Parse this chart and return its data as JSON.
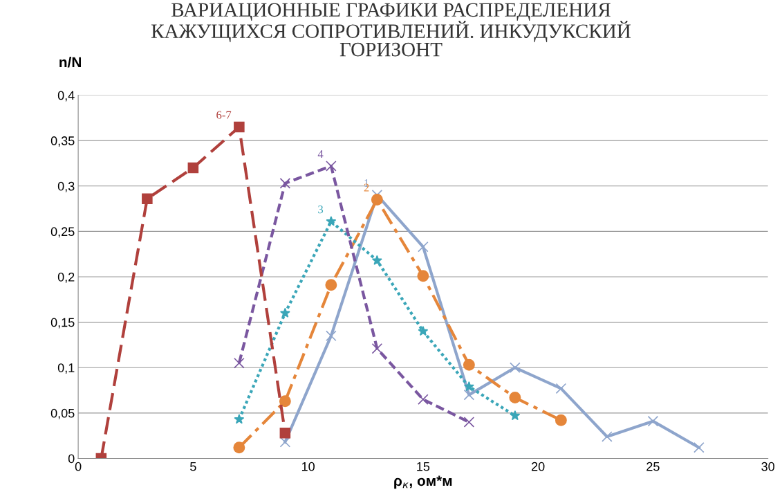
{
  "chart_data": {
    "type": "line",
    "title": "ВАРИАЦИОННЫЕ ГРАФИКИ РАСПРЕДЕЛЕНИЯ\nКАЖУЩИХСЯ СОПРОТИВЛЕНИЙ. ИНКУДУКСКИЙ\nГОРИЗОНТ",
    "xlabel": "ρ$_{к}$, ом*м",
    "ylabel": "n/N",
    "xlim": [
      0,
      30
    ],
    "xticks": [
      0,
      5,
      10,
      15,
      20,
      25,
      30
    ],
    "ylim": [
      0,
      0.4
    ],
    "yticks": [
      0,
      {
        "value": 0.05,
        "label": "0,05"
      },
      {
        "value": 0.1,
        "label": "0,1"
      },
      {
        "value": 0.15,
        "label": "0,15"
      },
      {
        "value": 0.2,
        "label": "0,2"
      },
      {
        "value": 0.25,
        "label": "0,25"
      },
      {
        "value": 0.3,
        "label": "0,3"
      },
      {
        "value": 0.35,
        "label": "0,35"
      },
      {
        "value": 0.4,
        "label": "0,4"
      }
    ],
    "grid": "y",
    "legend": false,
    "series": [
      {
        "name": "1",
        "color": "#8ea5cc",
        "marker": "cross",
        "line_style": "solid",
        "x": [
          9,
          11,
          13,
          15,
          17,
          19,
          21,
          23,
          25,
          27
        ],
        "values": [
          0.018,
          0.135,
          0.29,
          0.233,
          0.07,
          0.1,
          0.077,
          0.024,
          0.041,
          0.012
        ]
      },
      {
        "name": "2",
        "color": "#e5863a",
        "marker": "circle",
        "line_style": "dashdot",
        "x": [
          7,
          9,
          11,
          13,
          15,
          17,
          19,
          21
        ],
        "values": [
          0.012,
          0.063,
          0.191,
          0.285,
          0.201,
          0.103,
          0.067,
          0.042
        ]
      },
      {
        "name": "3",
        "color": "#3aa6b8",
        "marker": "star",
        "line_style": "dotted",
        "x": [
          7,
          9,
          11,
          13,
          15,
          17,
          19
        ],
        "values": [
          0.043,
          0.16,
          0.261,
          0.218,
          0.14,
          0.079,
          0.047
        ]
      },
      {
        "name": "4",
        "color": "#7a57a0",
        "marker": "cross",
        "line_style": "dashed",
        "x": [
          7,
          9,
          11,
          13,
          15,
          17
        ],
        "values": [
          0.105,
          0.303,
          0.322,
          0.121,
          0.065,
          0.04
        ]
      },
      {
        "name": "6-7",
        "color": "#b0403c",
        "marker": "square",
        "line_style": "longdash",
        "x": [
          1,
          3,
          5,
          7,
          9
        ],
        "values": [
          0,
          0.286,
          0.32,
          0.365,
          0.028
        ]
      }
    ]
  }
}
